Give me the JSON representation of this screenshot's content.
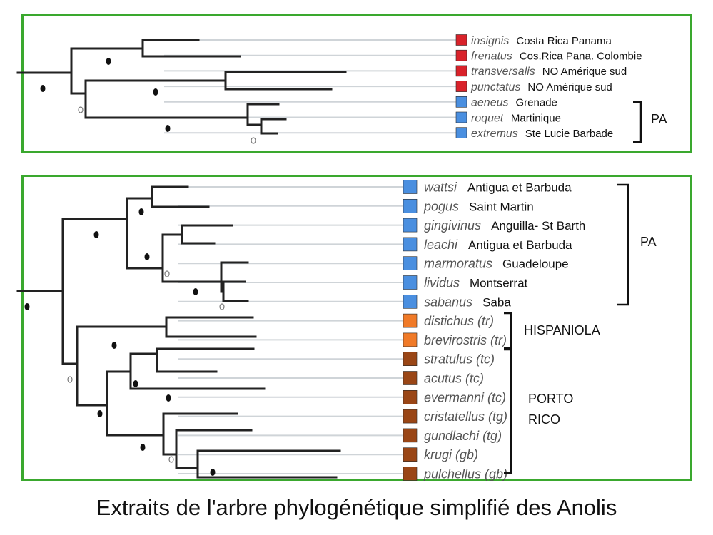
{
  "caption": "Extraits de l'arbre phylogénétique simplifié des Anolis",
  "colors": {
    "frame": "#3aa82e",
    "red": "#d9222a",
    "blue": "#4a8fe0",
    "orange": "#f07a28",
    "brown": "#9a4616",
    "branch": "#222222",
    "leader": "#cfd4d8"
  },
  "panel1": {
    "taxa": [
      {
        "species": "insignis",
        "location": "Costa Rica  Panama",
        "color": "red"
      },
      {
        "species": "frenatus",
        "location": "Cos.Rica  Pana. Colombie",
        "color": "red"
      },
      {
        "species": "transversalis",
        "location": "NO Amérique sud",
        "color": "red"
      },
      {
        "species": "punctatus",
        "location": "NO Amérique sud",
        "color": "red"
      },
      {
        "species": "aeneus",
        "location": "Grenade",
        "color": "blue"
      },
      {
        "species": "roquet",
        "location": "Martinique",
        "color": "blue"
      },
      {
        "species": "extremus",
        "location": "Ste Lucie Barbade",
        "color": "blue"
      }
    ],
    "groups": [
      {
        "label": "PA"
      }
    ]
  },
  "panel2": {
    "taxa": [
      {
        "species": "wattsi",
        "location": "Antigua et Barbuda",
        "color": "blue"
      },
      {
        "species": "pogus",
        "location": "Saint Martin",
        "color": "blue"
      },
      {
        "species": "gingivinus",
        "location": "Anguilla- St Barth",
        "color": "blue"
      },
      {
        "species": "leachi",
        "location": "Antigua et Barbuda",
        "color": "blue"
      },
      {
        "species": "marmoratus",
        "location": "Guadeloupe",
        "color": "blue"
      },
      {
        "species": "lividus",
        "location": "Montserrat",
        "color": "blue"
      },
      {
        "species": "sabanus",
        "location": "Saba",
        "color": "blue"
      },
      {
        "species": "distichus (tr)",
        "location": "",
        "color": "orange"
      },
      {
        "species": "brevirostris (tr)",
        "location": "",
        "color": "orange"
      },
      {
        "species": "stratulus (tc)",
        "location": "",
        "color": "brown"
      },
      {
        "species": "acutus (tc)",
        "location": "",
        "color": "brown"
      },
      {
        "species": "evermanni (tc)",
        "location": "",
        "color": "brown"
      },
      {
        "species": "cristatellus (tg)",
        "location": "",
        "color": "brown"
      },
      {
        "species": "gundlachi (tg)",
        "location": "",
        "color": "brown"
      },
      {
        "species": "krugi (gb)",
        "location": "",
        "color": "brown"
      },
      {
        "species": "pulchellus (gb)",
        "location": "",
        "color": "brown"
      }
    ],
    "groups": [
      {
        "label": "PA"
      },
      {
        "label": "HISPANIOLA"
      },
      {
        "label": "PORTO"
      },
      {
        "label": "RICO"
      }
    ]
  }
}
